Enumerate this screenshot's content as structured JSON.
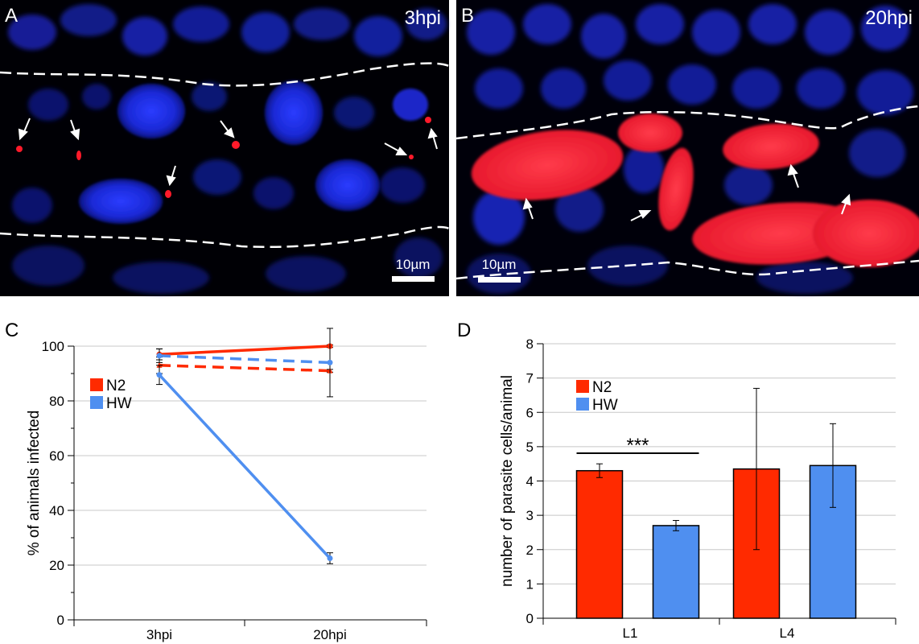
{
  "panels": {
    "A": {
      "letter": "A",
      "timepoint": "3hpi",
      "scale_bar": "10µm"
    },
    "B": {
      "letter": "B",
      "timepoint": "20hpi",
      "scale_bar": "10µm"
    },
    "C": {
      "letter": "C"
    },
    "D": {
      "letter": "D"
    }
  },
  "colors": {
    "N2": "#ff2a00",
    "HW": "#4f8ff0",
    "nuclei": "#1a2ad8",
    "parasite": "#ff1a2a"
  },
  "chart_data": [
    {
      "panel": "C",
      "type": "line",
      "categories": [
        "3hpi",
        "20hpi"
      ],
      "ylabel": "% of animals infected",
      "ylim": [
        0,
        100
      ],
      "yticks": [
        0,
        20,
        40,
        60,
        80,
        100
      ],
      "legend": {
        "entries": [
          "N2",
          "HW"
        ],
        "placement": "top-left"
      },
      "grid": true,
      "series": [
        {
          "name": "N2",
          "style": "solid",
          "values": [
            97,
            100
          ],
          "errors": [
            2,
            0.5
          ]
        },
        {
          "name": "N2",
          "style": "dashed",
          "values": [
            93,
            91
          ],
          "errors": [
            3,
            0.5
          ]
        },
        {
          "name": "HW",
          "style": "solid",
          "values": [
            89.5,
            22.5
          ],
          "errors": [
            3.5,
            2
          ]
        },
        {
          "name": "HW",
          "style": "dashed",
          "values": [
            96.5,
            94
          ],
          "errors": [
            2.5,
            12.5
          ]
        }
      ]
    },
    {
      "panel": "D",
      "type": "bar",
      "categories": [
        "L1",
        "L4"
      ],
      "ylabel": "number of parasite cells/animal",
      "ylim": [
        0,
        8
      ],
      "yticks": [
        0,
        1,
        2,
        3,
        4,
        5,
        6,
        7,
        8
      ],
      "legend": {
        "entries": [
          "N2",
          "HW"
        ],
        "placement": "top-left"
      },
      "grid": true,
      "series": [
        {
          "name": "N2",
          "values": [
            4.3,
            4.35
          ],
          "errors": [
            0.2,
            2.35
          ]
        },
        {
          "name": "HW",
          "values": [
            2.7,
            4.45
          ],
          "errors": [
            0.15,
            1.22
          ]
        }
      ],
      "annotation": {
        "text": "***",
        "between": "L1"
      }
    }
  ]
}
